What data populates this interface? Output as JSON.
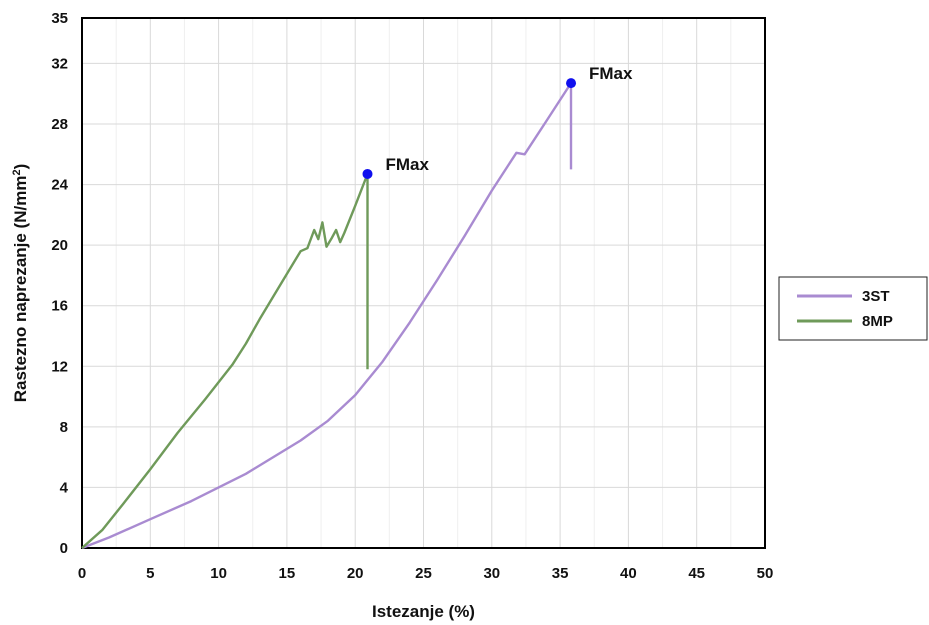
{
  "chart_data": {
    "type": "line",
    "title": "",
    "xlabel": "Istezanje (%)",
    "ylabel_main": "Rastezno naprezanje (N/mm",
    "ylabel_sup": "2",
    "ylabel_end": ")",
    "xlim": [
      0,
      50
    ],
    "ylim": [
      0,
      35
    ],
    "xticks": [
      0,
      5,
      10,
      15,
      20,
      25,
      30,
      35,
      40,
      45,
      50
    ],
    "yticks": [
      0,
      4,
      8,
      12,
      16,
      20,
      24,
      28,
      32,
      35
    ],
    "grid": true,
    "legend_position": "right",
    "series": [
      {
        "name": "3ST",
        "color": "#a98bd1",
        "points": [
          [
            0,
            0
          ],
          [
            2,
            0.7
          ],
          [
            5,
            1.9
          ],
          [
            8,
            3.1
          ],
          [
            12,
            4.9
          ],
          [
            16,
            7.1
          ],
          [
            18,
            8.4
          ],
          [
            20,
            10.1
          ],
          [
            22,
            12.3
          ],
          [
            24,
            14.9
          ],
          [
            26,
            17.7
          ],
          [
            28,
            20.6
          ],
          [
            30,
            23.6
          ],
          [
            31.8,
            26.1
          ],
          [
            32.4,
            26.0
          ],
          [
            34,
            28.2
          ],
          [
            35.8,
            30.7
          ],
          [
            35.8,
            25.0
          ]
        ]
      },
      {
        "name": "8MP",
        "color": "#6f9a5a",
        "points": [
          [
            0,
            0
          ],
          [
            1.5,
            1.2
          ],
          [
            3,
            2.9
          ],
          [
            5,
            5.2
          ],
          [
            7,
            7.6
          ],
          [
            9,
            9.8
          ],
          [
            11,
            12.1
          ],
          [
            12,
            13.5
          ],
          [
            13,
            15.1
          ],
          [
            14,
            16.6
          ],
          [
            15,
            18.1
          ],
          [
            16,
            19.6
          ],
          [
            16.5,
            19.8
          ],
          [
            17,
            21.0
          ],
          [
            17.3,
            20.4
          ],
          [
            17.6,
            21.5
          ],
          [
            17.9,
            19.9
          ],
          [
            18.3,
            20.5
          ],
          [
            18.6,
            21.0
          ],
          [
            18.9,
            20.2
          ],
          [
            19.2,
            20.8
          ],
          [
            20,
            22.6
          ],
          [
            20.9,
            24.7
          ],
          [
            20.9,
            11.8
          ]
        ]
      }
    ],
    "annotations": [
      {
        "series": "8MP",
        "label": "FMax",
        "x": 20.9,
        "y": 24.7
      },
      {
        "series": "3ST",
        "label": "FMax",
        "x": 35.8,
        "y": 30.7
      }
    ],
    "marker_color": "#1010ee"
  }
}
